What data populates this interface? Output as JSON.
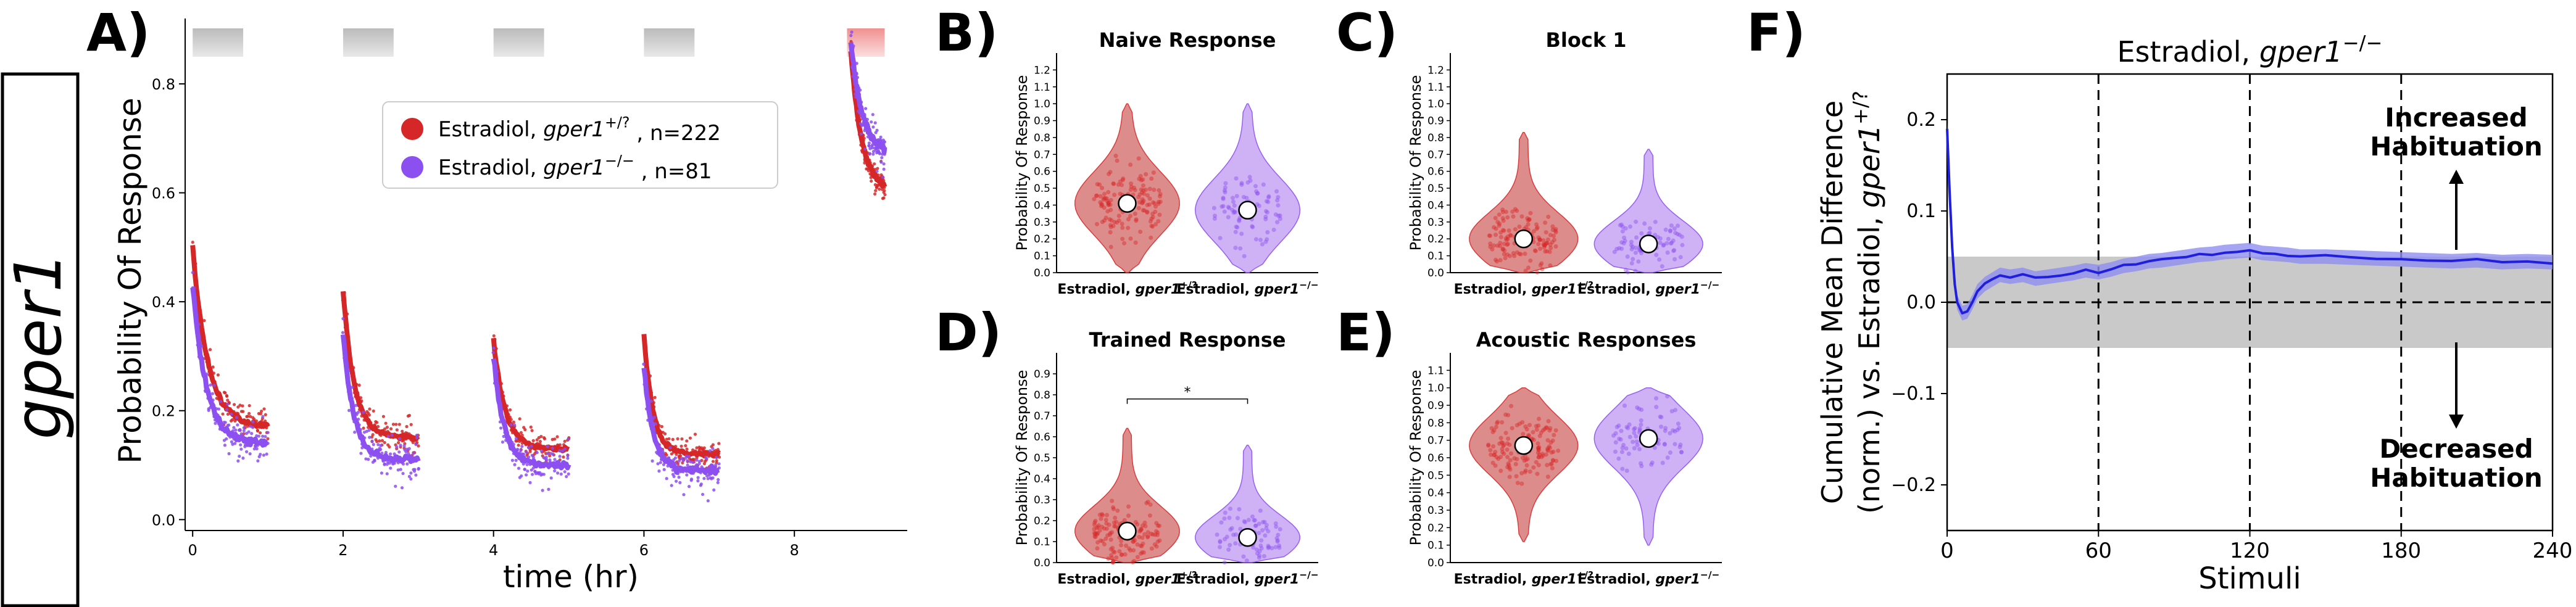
{
  "side_label": "gper1",
  "colors": {
    "wt": "#d62728",
    "wt_violin": "#d9807f",
    "mut": "#8c4ff0",
    "mut_violin": "#c9aaf4",
    "blue": "#1f1fdd",
    "blue_band": "#8f8ff0",
    "grey_band": "#c9c9c9"
  },
  "chart_data": [
    {
      "panel": "A)",
      "type": "scatter",
      "xlabel": "time (hr)",
      "ylabel": "Probability Of Response",
      "xlim": [
        -0.1,
        9.5
      ],
      "ylim": [
        -0.02,
        0.92
      ],
      "xticks": [
        "0",
        "2",
        "4",
        "6",
        "8"
      ],
      "yticks": [
        "0.0",
        "0.2",
        "0.4",
        "0.6",
        "0.8"
      ],
      "legend_placement": "upper-right",
      "stimulus_blocks": [
        [
          0,
          1
        ],
        [
          2,
          3
        ],
        [
          4,
          5
        ],
        [
          6,
          7
        ],
        [
          8.7,
          9.2
        ]
      ],
      "series": [
        {
          "name_prefix": "Estradiol, ",
          "name_gene": "gper1",
          "name_sup": "+/?",
          "name_suffix": " , n=222",
          "blocks": [
            {
              "start": 0,
              "peak": 0.5,
              "plateau": 0.17,
              "decay": 0.2
            },
            {
              "start": 2,
              "peak": 0.42,
              "plateau": 0.15,
              "decay": 0.15
            },
            {
              "start": 4,
              "peak": 0.33,
              "plateau": 0.13,
              "decay": 0.15
            },
            {
              "start": 6,
              "peak": 0.34,
              "plateau": 0.12,
              "decay": 0.12
            },
            {
              "start": 8.75,
              "peak": 0.86,
              "plateau": 0.6,
              "decay": 0.15,
              "end": 9.2
            }
          ]
        },
        {
          "name_prefix": "Estradiol, ",
          "name_gene": "gper1",
          "name_sup": "−/−",
          "name_suffix": " , n=81",
          "blocks": [
            {
              "start": 0,
              "peak": 0.43,
              "plateau": 0.14,
              "decay": 0.18
            },
            {
              "start": 2,
              "peak": 0.34,
              "plateau": 0.11,
              "decay": 0.14
            },
            {
              "start": 4,
              "peak": 0.3,
              "plateau": 0.1,
              "decay": 0.14
            },
            {
              "start": 6,
              "peak": 0.28,
              "plateau": 0.09,
              "decay": 0.12
            },
            {
              "start": 8.75,
              "peak": 0.88,
              "plateau": 0.67,
              "decay": 0.15,
              "end": 9.2
            }
          ]
        }
      ]
    },
    {
      "panel": "B)",
      "type": "violin",
      "title": "Naive Response",
      "ylabel": "Probability Of Response",
      "ylim": [
        0,
        1.3
      ],
      "yticks": [
        "0.0",
        "0.1",
        "0.2",
        "0.3",
        "0.4",
        "0.5",
        "0.6",
        "0.7",
        "0.8",
        "0.9",
        "1.0",
        "1.1",
        "1.2"
      ],
      "groups": [
        {
          "label": "Estradiol, gper1",
          "sup": "+/?",
          "mean": 0.41,
          "n": 222,
          "range": [
            0,
            1
          ]
        },
        {
          "label": "Estradiol, gper1",
          "sup": "−/−",
          "mean": 0.37,
          "n": 81,
          "range": [
            0,
            1
          ]
        }
      ]
    },
    {
      "panel": "C)",
      "type": "violin",
      "title": "Block 1",
      "ylabel": "Probability Of Response",
      "ylim": [
        0,
        1.3
      ],
      "yticks": [
        "0.0",
        "0.1",
        "0.2",
        "0.3",
        "0.4",
        "0.5",
        "0.6",
        "0.7",
        "0.8",
        "0.9",
        "1.0",
        "1.1",
        "1.2"
      ],
      "groups": [
        {
          "label": "Estradiol, gper1",
          "sup": "+/?",
          "mean": 0.2,
          "n": 222,
          "range": [
            0,
            0.83
          ]
        },
        {
          "label": "Estradiol, gper1",
          "sup": "−/−",
          "mean": 0.17,
          "n": 81,
          "range": [
            0,
            0.73
          ]
        }
      ]
    },
    {
      "panel": "D)",
      "type": "violin",
      "title": "Trained Response",
      "ylabel": "Probability Of Response",
      "ylim": [
        0,
        1.0
      ],
      "yticks": [
        "0.0",
        "0.1",
        "0.2",
        "0.3",
        "0.4",
        "0.5",
        "0.6",
        "0.7",
        "0.8",
        "0.9"
      ],
      "significance": "*",
      "groups": [
        {
          "label": "Estradiol, gper1",
          "sup": "+/?",
          "mean": 0.15,
          "n": 222,
          "range": [
            0,
            0.64
          ]
        },
        {
          "label": "Estradiol, gper1",
          "sup": "−/−",
          "mean": 0.12,
          "n": 81,
          "range": [
            0,
            0.56
          ]
        }
      ]
    },
    {
      "panel": "E)",
      "type": "violin",
      "title": "Acoustic Responses",
      "ylabel": "Probability Of Response",
      "ylim": [
        0,
        1.2
      ],
      "yticks": [
        "0.0",
        "0.1",
        "0.2",
        "0.3",
        "0.4",
        "0.5",
        "0.6",
        "0.7",
        "0.8",
        "0.9",
        "1.0",
        "1.1"
      ],
      "groups": [
        {
          "label": "Estradiol, gper1",
          "sup": "+/?",
          "mean": 0.67,
          "n": 222,
          "range": [
            0.12,
            1
          ]
        },
        {
          "label": "Estradiol, gper1",
          "sup": "−/−",
          "mean": 0.71,
          "n": 81,
          "range": [
            0.1,
            1
          ]
        }
      ]
    },
    {
      "panel": "F)",
      "type": "line",
      "title_prefix": "Estradiol, ",
      "title_gene": "gper1",
      "title_sup": "−/−",
      "xlabel": "Stimuli",
      "ylabel_line1": "Cumulative Mean Difference",
      "ylabel_line2_prefix": "(norm.) vs. Estradiol, ",
      "ylabel_line2_gene": "gper1",
      "ylabel_line2_sup": "+/?",
      "xlim": [
        0,
        240
      ],
      "ylim": [
        -0.25,
        0.25
      ],
      "xticks": [
        0,
        60,
        120,
        180,
        240
      ],
      "yticks": [
        -0.2,
        -0.1,
        0.0,
        0.1,
        0.2
      ],
      "ytick_labels": [
        "−0.2",
        "−0.1",
        "0.0",
        "0.1",
        "0.2"
      ],
      "null_band": [
        -0.05,
        0.05
      ],
      "block_boundaries": [
        60,
        120,
        180
      ],
      "annotation_up": [
        "Increased",
        "Habituation"
      ],
      "annotation_down": [
        "Decreased",
        "Habituation"
      ],
      "series": {
        "x": [
          0,
          1,
          2,
          3,
          4,
          6,
          8,
          10,
          12,
          15,
          18,
          21,
          25,
          30,
          35,
          40,
          45,
          50,
          55,
          60,
          65,
          70,
          75,
          80,
          85,
          90,
          95,
          100,
          105,
          110,
          115,
          120,
          125,
          130,
          135,
          140,
          150,
          160,
          170,
          180,
          190,
          200,
          210,
          220,
          230,
          240
        ],
        "y": [
          0.19,
          0.12,
          0.06,
          0.02,
          0.0,
          -0.012,
          -0.01,
          0.0,
          0.012,
          0.02,
          0.025,
          0.03,
          0.028,
          0.03,
          0.026,
          0.028,
          0.03,
          0.032,
          0.035,
          0.033,
          0.036,
          0.04,
          0.042,
          0.045,
          0.046,
          0.048,
          0.05,
          0.052,
          0.053,
          0.055,
          0.056,
          0.057,
          0.054,
          0.053,
          0.052,
          0.05,
          0.05,
          0.049,
          0.048,
          0.047,
          0.046,
          0.045,
          0.046,
          0.044,
          0.045,
          0.044
        ],
        "band_halfwidth": 0.008
      }
    }
  ]
}
